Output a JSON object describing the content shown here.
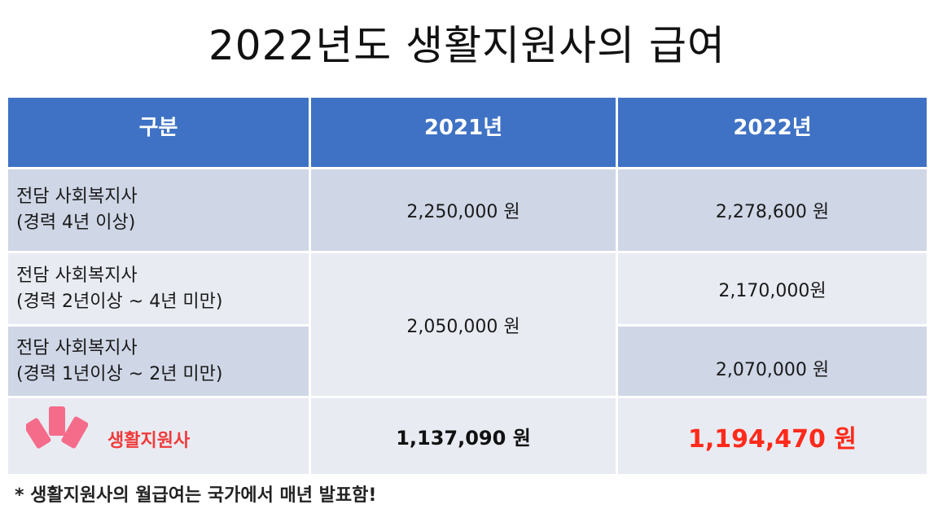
{
  "title": "2022년도 생활지원사의 급여",
  "colors": {
    "header_bg": "#3f72c4",
    "row_dark": "#cfd6e6",
    "row_light": "#e8ebf2",
    "highlight_red": "#ff2a1a",
    "icon_pink": "#f56b8a"
  },
  "table": {
    "headers": [
      "구분",
      "2021년",
      "2022년"
    ],
    "rows": [
      {
        "label": "전담 사회복지사\n(경력 4년 이상)",
        "y2021": "2,250,000 원",
        "y2022": "2,278,600 원"
      },
      {
        "label": "전담 사회복지사\n(경력 2년이상 ~ 4년 미만)",
        "y2021": "2,050,000 원",
        "y2022": "2,170,000원"
      },
      {
        "label": "전담 사회복지사\n(경력 1년이상 ~ 2년 미만)",
        "y2022": "2,070,000 원"
      }
    ],
    "summary": {
      "label": "생활지원사",
      "icon": "cards-icon",
      "y2021": "1,137,090 원",
      "y2022": "1,194,470 원"
    }
  },
  "footnote": "* 생활지원사의 월급여는 국가에서 매년 발표함!"
}
